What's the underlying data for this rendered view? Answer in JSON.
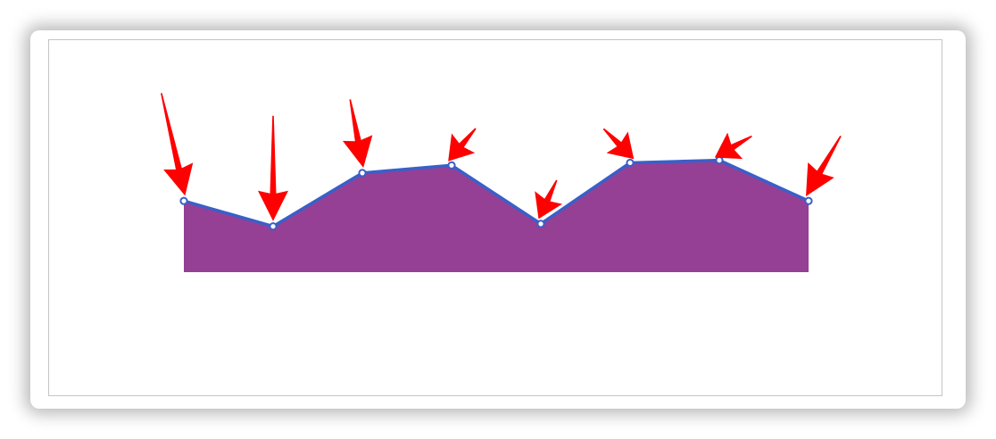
{
  "chart_data": {
    "type": "area",
    "x": [
      1,
      2,
      3,
      4,
      5,
      6,
      7,
      8
    ],
    "series": [
      {
        "values": [
          28,
          18,
          39,
          42,
          19,
          43,
          44,
          28
        ]
      }
    ],
    "ylim": [
      0,
      56
    ],
    "grid": false,
    "legend": "none",
    "colors": {
      "fill": "#954095",
      "line": "#3a5fc8",
      "marker_fill": "#ffffff",
      "annotation_arrow": "#ff0000"
    },
    "annotations": [
      {
        "type": "arrow",
        "x": 1,
        "rotation_deg": -13,
        "length": "long"
      },
      {
        "type": "arrow",
        "x": 2,
        "rotation_deg": 0,
        "length": "long"
      },
      {
        "type": "arrow",
        "x": 3,
        "rotation_deg": -11,
        "length": "medium"
      },
      {
        "type": "arrow",
        "x": 4,
        "rotation_deg": 40,
        "length": "short"
      },
      {
        "type": "arrow",
        "x": 5,
        "rotation_deg": 25,
        "length": "short"
      },
      {
        "type": "arrow",
        "x": 6,
        "rotation_deg": -45,
        "length": "short"
      },
      {
        "type": "arrow",
        "x": 7,
        "rotation_deg": 60,
        "length": "short"
      },
      {
        "type": "arrow",
        "x": 8,
        "rotation_deg": 30,
        "length": "medium"
      }
    ]
  }
}
